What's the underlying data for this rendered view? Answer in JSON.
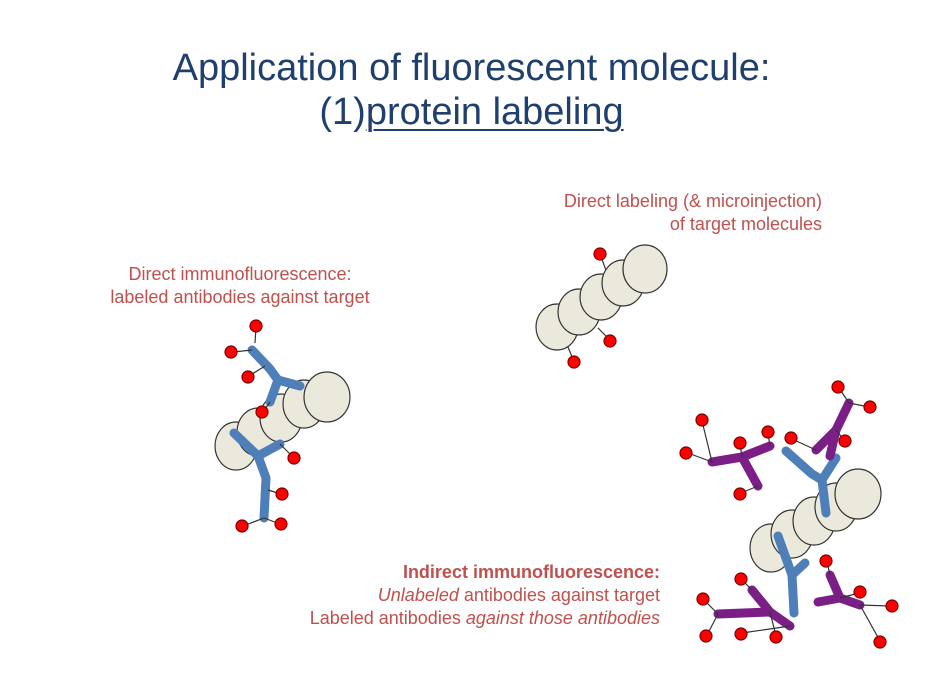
{
  "title": {
    "line1": "Application of fluorescent molecule:",
    "line2_prefix": "(1)",
    "line2_underlined": "protein labeling"
  },
  "labels": {
    "direct_labeling": {
      "line1": "Direct labeling (& microinjection)",
      "line2": "of target molecules"
    },
    "direct_immuno": {
      "line1": "Direct immunofluorescence:",
      "line2": "labeled antibodies against target"
    },
    "indirect_immuno": {
      "heading": "Indirect immunofluorescence:",
      "line2_italic": "Unlabeled",
      "line2_rest": " antibodies against target",
      "line3_plain": "Labeled antibodies ",
      "line3_italic": "against those antibodies"
    }
  },
  "colors": {
    "title": "#1f3f6e",
    "label": "#c0504d",
    "fluorophore": "#ff0000",
    "target_bead": "#ebe8dc",
    "primary_antibody": "#4f7fb8",
    "secondary_antibody": "#7b1f86"
  },
  "icons": [
    "target-protein-chain",
    "fluorophore-dot",
    "primary-antibody",
    "secondary-antibody"
  ]
}
